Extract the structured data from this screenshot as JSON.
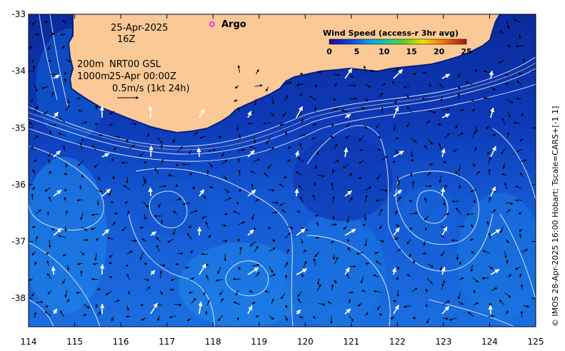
{
  "plot": {
    "lon_range": [
      114,
      125
    ],
    "lat_range": [
      -38.5,
      -33
    ],
    "x_ticks": [
      "114",
      "115",
      "116",
      "117",
      "118",
      "119",
      "120",
      "121",
      "122",
      "123",
      "124",
      "125"
    ],
    "y_ticks": [
      "-33",
      "-34",
      "-35",
      "-36",
      "-37",
      "-38"
    ]
  },
  "annotations": {
    "date": "25-Apr-2025",
    "hour": "16Z",
    "depth_line1": "200m",
    "depth_line2": "1000m",
    "product": "NRT00 GSL",
    "product_time": "25-Apr 00:00Z",
    "scale_label": "0.5m/s (1kt 24h)"
  },
  "legend": {
    "argo_label": "Argo",
    "wind_title": "Wind Speed (access-r 3hr avg)",
    "wind_ticks": [
      "0",
      "5",
      "10",
      "15",
      "20",
      "25"
    ],
    "wind_tick_values": [
      0,
      5,
      10,
      15,
      20,
      25
    ]
  },
  "colors": {
    "land": "#fbc996",
    "ocean_dark": "#0a2a9c",
    "ocean_mid": "#1450d0",
    "ocean_light": "#1e78e6",
    "argo": "#ff00ff"
  },
  "credit": "© IMOS 28-Apr-2025 16:00 Hobart; Tscale=CARS+[-1 1]"
}
